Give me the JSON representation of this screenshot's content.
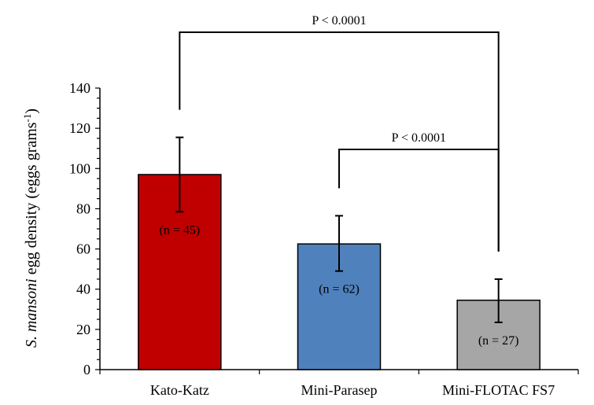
{
  "chart_data": {
    "type": "bar",
    "categories": [
      "Kato-Katz",
      "Mini-Parasep",
      "Mini-FLOTAC FS7"
    ],
    "values": [
      97,
      62.5,
      34.5
    ],
    "error_low": [
      78.5,
      49,
      23.5
    ],
    "error_high": [
      115.5,
      76.5,
      45
    ],
    "n_labels": [
      "(n = 45)",
      "(n = 62)",
      "(n = 27)"
    ],
    "colors": [
      "#c00000",
      "#4f81bd",
      "#a6a6a6"
    ],
    "ylabel_italic": "S. mansoni",
    "ylabel_rest": " egg density (eggs grams",
    "ylabel_sup": "-1",
    "ylabel_close": ")",
    "ylim": [
      0,
      140
    ],
    "yticks": [
      "0",
      "20",
      "40",
      "60",
      "80",
      "100",
      "120",
      "140"
    ],
    "grid": false,
    "significance": [
      {
        "from": 0,
        "to": 2,
        "label": "P < 0.0001"
      },
      {
        "from": 1,
        "to": 2,
        "label": "P < 0.0001"
      }
    ]
  }
}
